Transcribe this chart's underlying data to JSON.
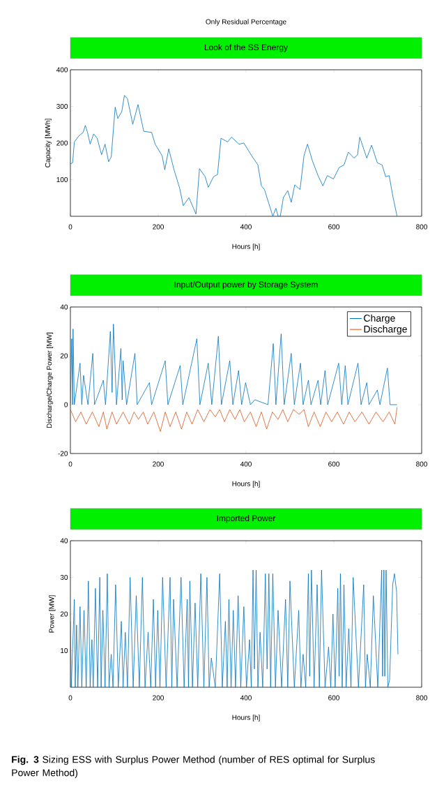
{
  "chart_data": [
    {
      "type": "line",
      "subtitle": "Only Residual Percentage",
      "title": "Look of the SS Energy",
      "xlabel": "Hours [h]",
      "ylabel": "Capacity [MWh]",
      "xlim": [
        0,
        800
      ],
      "ylim": [
        0,
        400
      ],
      "xticks": [
        0,
        200,
        400,
        600,
        800
      ],
      "yticks": [
        100,
        200,
        300,
        400
      ],
      "marker": "none",
      "line_style": "solid",
      "series": [
        {
          "color": "#0072bd",
          "x": [
            0,
            5,
            9,
            19,
            29,
            34,
            39,
            45,
            53,
            61,
            71,
            79,
            87,
            93,
            102,
            108,
            117,
            123,
            130,
            142,
            154,
            167,
            185,
            193,
            209,
            215,
            224,
            236,
            249,
            257,
            270,
            286,
            294,
            307,
            314,
            326,
            335,
            343,
            358,
            367,
            384,
            395,
            413,
            427,
            435,
            442,
            461,
            468,
            473,
            478,
            485,
            495,
            503,
            511,
            523,
            532,
            540,
            551,
            564,
            575,
            585,
            599,
            612,
            623,
            633,
            646,
            654,
            659,
            675,
            686,
            699,
            710,
            718,
            726,
            734,
            744
          ],
          "values": [
            143,
            146,
            203,
            219,
            229,
            248,
            229,
            197,
            225,
            213,
            168,
            197,
            149,
            162,
            298,
            267,
            286,
            330,
            321,
            251,
            305,
            232,
            229,
            197,
            165,
            127,
            184,
            127,
            76,
            29,
            51,
            6,
            130,
            108,
            79,
            108,
            114,
            213,
            203,
            216,
            197,
            200,
            165,
            140,
            83,
            73,
            0,
            22,
            0,
            0,
            51,
            70,
            38,
            86,
            73,
            165,
            197,
            152,
            111,
            83,
            111,
            102,
            133,
            140,
            175,
            159,
            168,
            216,
            159,
            194,
            146,
            140,
            108,
            111,
            57,
            0
          ]
        }
      ]
    },
    {
      "type": "line",
      "title": "Input/Output power by Storage System",
      "xlabel": "Hours [h]",
      "ylabel": "Discharge/Charge Power [MW]",
      "xlim": [
        0,
        800
      ],
      "ylim": [
        -20,
        40
      ],
      "xticks": [
        0,
        200,
        400,
        600,
        800
      ],
      "yticks": [
        -20,
        0,
        20,
        40
      ],
      "marker": "none",
      "line_style": "solid",
      "legend": "top right",
      "series": [
        {
          "name": "Charge",
          "color": "#0072bd",
          "x": [
            0,
            3,
            5,
            6,
            9,
            22,
            26,
            30,
            40,
            51,
            55,
            75,
            80,
            91,
            95,
            98,
            105,
            115,
            118,
            120,
            128,
            147,
            152,
            180,
            185,
            216,
            222,
            250,
            256,
            288,
            295,
            314,
            322,
            337,
            344,
            363,
            370,
            383,
            390,
            399,
            410,
            420,
            450,
            462,
            468,
            480,
            487,
            503,
            510,
            524,
            530,
            542,
            548,
            564,
            570,
            580,
            586,
            611,
            618,
            626,
            632,
            655,
            662,
            675,
            680,
            699,
            705,
            722,
            728,
            744
          ],
          "values": [
            0,
            27,
            0,
            31,
            0,
            17,
            0,
            12,
            0,
            21,
            0,
            10,
            0,
            30,
            5,
            33,
            0,
            23,
            2,
            18,
            0,
            21,
            0,
            9,
            0,
            18,
            0,
            16,
            0,
            27,
            0,
            17,
            0,
            28,
            0,
            18,
            0,
            14,
            0,
            9,
            0,
            2,
            0,
            25,
            0,
            29,
            0,
            21,
            0,
            17,
            0,
            10,
            0,
            10,
            0,
            14,
            0,
            17,
            0,
            16,
            0,
            17,
            0,
            9,
            0,
            6,
            0,
            15,
            0,
            0
          ]
        },
        {
          "name": "Discharge",
          "color": "#d95319",
          "x": [
            0,
            12,
            24,
            36,
            50,
            65,
            75,
            83,
            95,
            105,
            120,
            134,
            145,
            155,
            166,
            176,
            190,
            205,
            216,
            227,
            240,
            253,
            265,
            277,
            290,
            304,
            318,
            330,
            340,
            351,
            363,
            375,
            386,
            396,
            410,
            423,
            435,
            447,
            460,
            473,
            484,
            495,
            508,
            521,
            532,
            542,
            555,
            569,
            582,
            595,
            608,
            622,
            635,
            648,
            664,
            680,
            696,
            712,
            726,
            739,
            744
          ],
          "values": [
            -2,
            -7,
            -3,
            -8,
            -3,
            -9,
            -3,
            -10,
            -3,
            -8,
            -3,
            -8,
            -3,
            -6,
            -3,
            -8,
            -3,
            -11,
            -3,
            -9,
            -3,
            -10,
            -3,
            -8,
            -2,
            -7,
            -2,
            -5,
            -2,
            -7,
            -2,
            -6,
            -2,
            -7,
            -3,
            -9,
            -3,
            -10,
            -3,
            -6,
            -2,
            -7,
            -2,
            -4,
            -2,
            -9,
            -3,
            -9,
            -3,
            -7,
            -3,
            -8,
            -3,
            -7,
            -3,
            -8,
            -3,
            -7,
            -3,
            -8,
            -1
          ]
        }
      ]
    },
    {
      "type": "line",
      "title": "Imported Power",
      "xlabel": "Hours [h]",
      "ylabel": "Power [MW]",
      "xlim": [
        0,
        800
      ],
      "ylim": [
        0,
        40
      ],
      "xticks": [
        0,
        200,
        400,
        600,
        800
      ],
      "yticks": [
        10,
        20,
        30,
        40
      ],
      "marker": "none",
      "line_style": "solid",
      "annotations": [
        "**Fig. 3** Sizing ESS with Surplus Power Method (number of RES optimal for Surplus Power Method)"
      ],
      "series": [
        {
          "color": "#0072bd",
          "x": [
            0,
            2,
            9,
            11,
            14,
            17,
            22,
            26,
            31,
            36,
            41,
            45,
            49,
            52,
            57,
            62,
            67,
            70,
            74,
            79,
            84,
            88,
            93,
            97,
            103,
            109,
            116,
            120,
            125,
            130,
            136,
            143,
            150,
            157,
            164,
            170,
            177,
            183,
            189,
            194,
            199,
            204,
            210,
            218,
            227,
            231,
            235,
            243,
            252,
            259,
            266,
            269,
            272,
            278,
            284,
            290,
            297,
            304,
            311,
            316,
            321,
            330,
            340,
            346,
            353,
            357,
            361,
            366,
            371,
            376,
            382,
            388,
            395,
            401,
            408,
            412,
            416,
            419,
            423,
            427,
            432,
            438,
            444,
            448,
            452,
            456,
            461,
            467,
            473,
            481,
            490,
            495,
            500,
            510,
            520,
            525,
            530,
            536,
            542,
            545,
            549,
            555,
            562,
            567,
            572,
            580,
            588,
            593,
            598,
            603,
            609,
            612,
            615,
            619,
            623,
            628,
            634,
            639,
            644,
            656,
            668,
            672,
            676,
            683,
            690,
            700,
            709,
            711,
            714,
            716,
            719,
            723,
            727,
            734,
            738,
            743,
            746
          ],
          "values": [
            18,
            0,
            24,
            0,
            17,
            0,
            22,
            0,
            21,
            0,
            29,
            0,
            13,
            0,
            27,
            0,
            30,
            0,
            21,
            0,
            31,
            0,
            9,
            0,
            28,
            0,
            18,
            0,
            15,
            0,
            30,
            0,
            25,
            0,
            30,
            0,
            15,
            0,
            24,
            0,
            21,
            0,
            30,
            0,
            30,
            0,
            24,
            0,
            30,
            0,
            24,
            0,
            29,
            0,
            23,
            0,
            31,
            0,
            30,
            0,
            8,
            0,
            31,
            0,
            18,
            0,
            24,
            0,
            21,
            0,
            25,
            0,
            22,
            0,
            13,
            0,
            32,
            5,
            32,
            0,
            15,
            0,
            31,
            5,
            31,
            0,
            31,
            0,
            21,
            0,
            24,
            0,
            29,
            0,
            21,
            0,
            9,
            0,
            31,
            3,
            32,
            0,
            28,
            0,
            32,
            0,
            11,
            0,
            20,
            0,
            27,
            3,
            31,
            0,
            28,
            0,
            16,
            0,
            30,
            0,
            28,
            0,
            9,
            0,
            25,
            0,
            32,
            3,
            32,
            3,
            32,
            0,
            2,
            28,
            31,
            26,
            9
          ]
        }
      ]
    }
  ]
}
